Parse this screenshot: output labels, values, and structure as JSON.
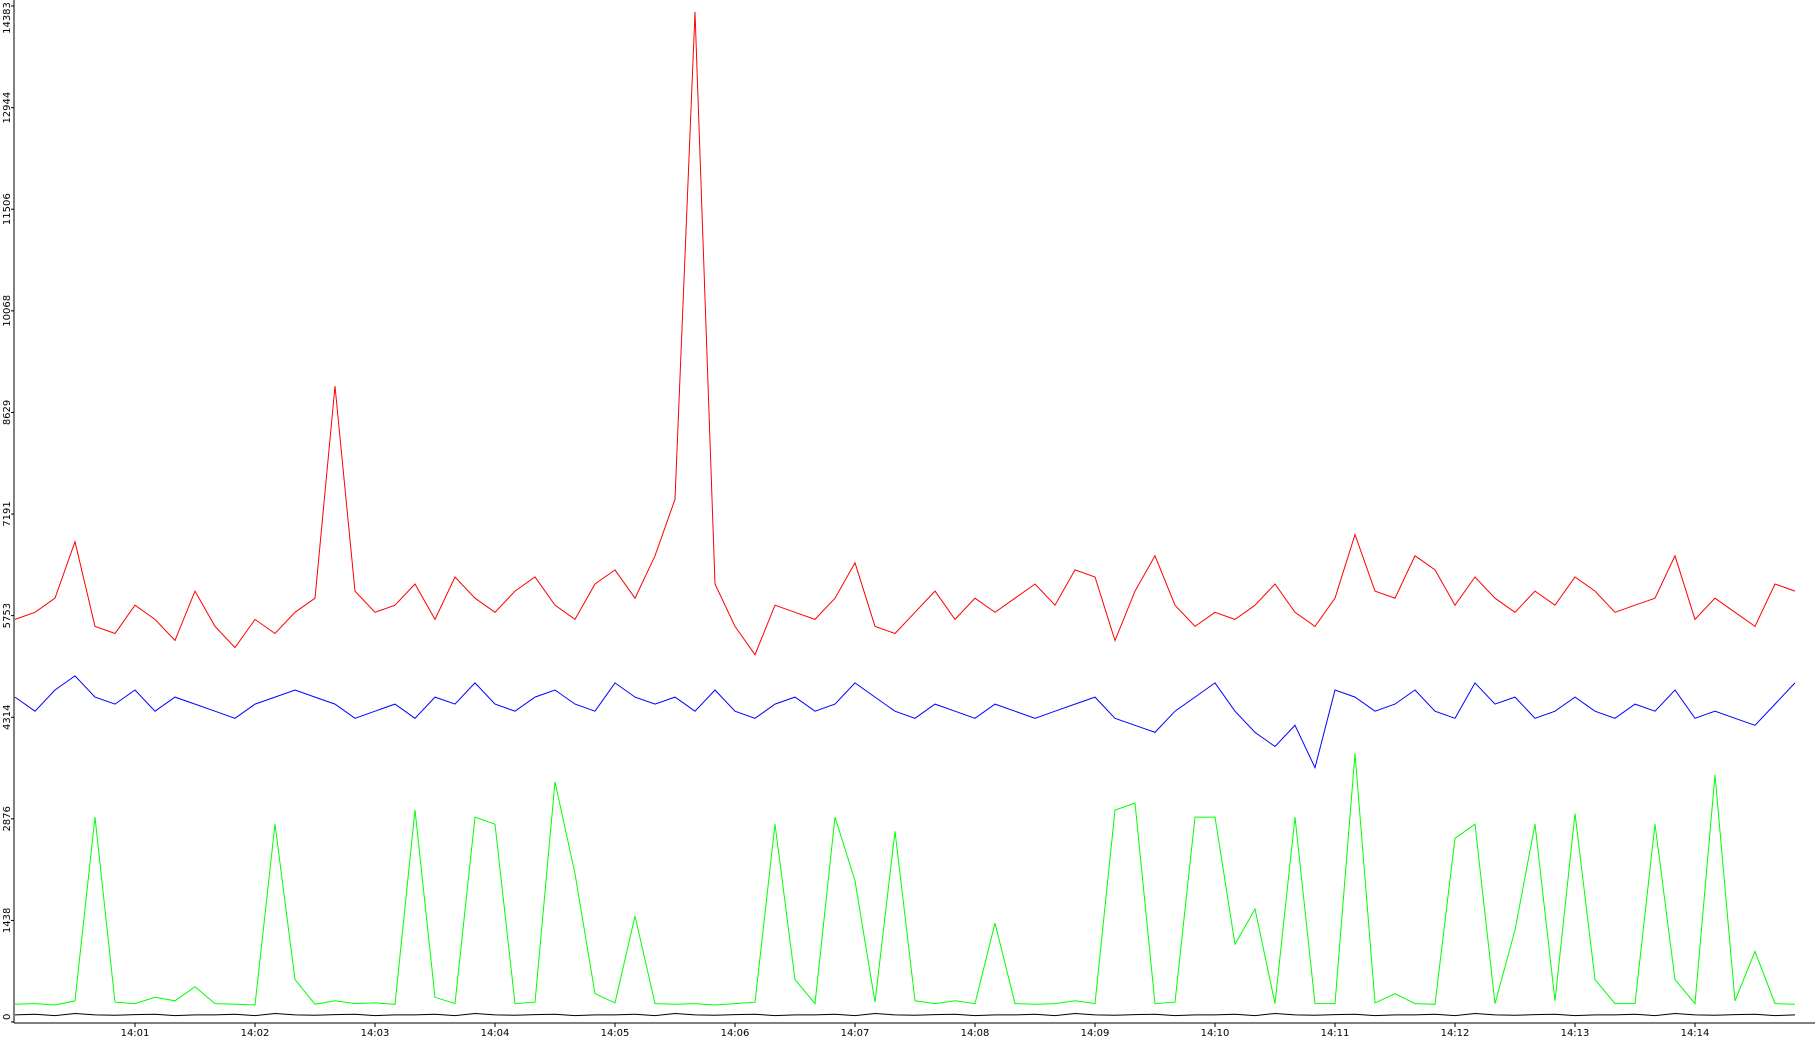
{
  "chart_data": {
    "type": "line",
    "x": [
      "14:00:00",
      "14:00:10",
      "14:00:20",
      "14:00:30",
      "14:00:40",
      "14:00:50",
      "14:01:00",
      "14:01:10",
      "14:01:20",
      "14:01:30",
      "14:01:40",
      "14:01:50",
      "14:02:00",
      "14:02:10",
      "14:02:20",
      "14:02:30",
      "14:02:40",
      "14:02:50",
      "14:03:00",
      "14:03:10",
      "14:03:20",
      "14:03:30",
      "14:03:40",
      "14:03:50",
      "14:04:00",
      "14:04:10",
      "14:04:20",
      "14:04:30",
      "14:04:40",
      "14:04:50",
      "14:05:00",
      "14:05:10",
      "14:05:20",
      "14:05:30",
      "14:05:40",
      "14:05:50",
      "14:06:00",
      "14:06:10",
      "14:06:20",
      "14:06:30",
      "14:06:40",
      "14:06:50",
      "14:07:00",
      "14:07:10",
      "14:07:20",
      "14:07:30",
      "14:07:40",
      "14:07:50",
      "14:08:00",
      "14:08:10",
      "14:08:20",
      "14:08:30",
      "14:08:40",
      "14:08:50",
      "14:09:00",
      "14:09:10",
      "14:09:20",
      "14:09:30",
      "14:09:40",
      "14:09:50",
      "14:10:00",
      "14:10:10",
      "14:10:20",
      "14:10:30",
      "14:10:40",
      "14:10:50",
      "14:11:00",
      "14:11:10",
      "14:11:20",
      "14:11:30",
      "14:11:40",
      "14:11:50",
      "14:12:00",
      "14:12:10",
      "14:12:20",
      "14:12:30",
      "14:12:40",
      "14:12:50",
      "14:13:00",
      "14:13:10",
      "14:13:20",
      "14:13:30",
      "14:13:40",
      "14:13:50",
      "14:14:00",
      "14:14:10",
      "14:14:20",
      "14:14:30",
      "14:14:40",
      "14:14:50"
    ],
    "series": [
      {
        "color": "#ff0000",
        "values": [
          5700,
          5800,
          6000,
          6800,
          5600,
          5500,
          5900,
          5700,
          5400,
          6100,
          5600,
          5300,
          5700,
          5500,
          5800,
          6000,
          9000,
          6100,
          5800,
          5900,
          6200,
          5700,
          6300,
          6000,
          5800,
          6100,
          6300,
          5900,
          5700,
          6200,
          6400,
          6000,
          6600,
          7400,
          14300,
          6200,
          5600,
          5200,
          5900,
          5800,
          5700,
          6000,
          6500,
          5600,
          5500,
          5800,
          6100,
          5700,
          6000,
          5800,
          6000,
          6200,
          5900,
          6400,
          6300,
          5400,
          6100,
          6600,
          5900,
          5600,
          5800,
          5700,
          5900,
          6200,
          5800,
          5600,
          6000,
          6900,
          6100,
          6000,
          6600,
          6400,
          5900,
          6300,
          6000,
          5800,
          6100,
          5900,
          6300,
          6100,
          5800,
          5900,
          6000,
          6600,
          5700,
          6000,
          5800,
          5600,
          6200,
          6100
        ]
      },
      {
        "color": "#0000ff",
        "values": [
          4600,
          4400,
          4700,
          4900,
          4600,
          4500,
          4700,
          4400,
          4600,
          4500,
          4400,
          4300,
          4500,
          4600,
          4700,
          4600,
          4500,
          4300,
          4400,
          4500,
          4300,
          4600,
          4500,
          4800,
          4500,
          4400,
          4600,
          4700,
          4500,
          4400,
          4800,
          4600,
          4500,
          4600,
          4400,
          4700,
          4400,
          4300,
          4500,
          4600,
          4400,
          4500,
          4800,
          4600,
          4400,
          4300,
          4500,
          4400,
          4300,
          4500,
          4400,
          4300,
          4400,
          4500,
          4600,
          4300,
          4200,
          4100,
          4400,
          4600,
          4800,
          4400,
          4100,
          3900,
          4200,
          3600,
          4700,
          4600,
          4400,
          4500,
          4700,
          4400,
          4300,
          4800,
          4500,
          4600,
          4300,
          4400,
          4600,
          4400,
          4300,
          4500,
          4400,
          4700,
          4300,
          4400,
          4300,
          4200,
          4500,
          4800
        ]
      },
      {
        "color": "#00ff00",
        "values": [
          250,
          260,
          240,
          300,
          2900,
          280,
          260,
          350,
          300,
          500,
          260,
          250,
          240,
          2800,
          600,
          250,
          300,
          260,
          270,
          250,
          3000,
          350,
          260,
          2900,
          2800,
          260,
          280,
          3400,
          2100,
          400,
          270,
          1500,
          260,
          250,
          260,
          240,
          260,
          280,
          2800,
          600,
          260,
          2900,
          2000,
          280,
          2700,
          300,
          260,
          300,
          260,
          1400,
          260,
          250,
          260,
          300,
          260,
          3000,
          3100,
          260,
          280,
          2900,
          2900,
          1100,
          1600,
          260,
          2900,
          260,
          260,
          3800,
          270,
          400,
          260,
          250,
          2600,
          2800,
          260,
          1300,
          2800,
          300,
          2950,
          600,
          260,
          260,
          2800,
          600,
          260,
          3500,
          300,
          1000,
          260,
          250
        ]
      },
      {
        "color": "#000000",
        "values": [
          100,
          110,
          90,
          120,
          100,
          95,
          105,
          110,
          90,
          100,
          100,
          110,
          90,
          120,
          100,
          95,
          105,
          110,
          90,
          100,
          100,
          110,
          90,
          120,
          100,
          95,
          105,
          110,
          90,
          100,
          100,
          110,
          90,
          120,
          100,
          95,
          105,
          110,
          90,
          100,
          100,
          110,
          90,
          120,
          100,
          95,
          105,
          110,
          90,
          100,
          100,
          110,
          90,
          120,
          100,
          95,
          105,
          110,
          90,
          100,
          100,
          110,
          90,
          120,
          100,
          95,
          105,
          110,
          90,
          100,
          100,
          110,
          90,
          120,
          100,
          95,
          105,
          110,
          90,
          100,
          100,
          110,
          90,
          120,
          100,
          95,
          105,
          110,
          90,
          100
        ]
      }
    ],
    "xlim": [
      "14:00:00",
      "14:15:00"
    ],
    "xticks": [
      {
        "value": "14:01:00",
        "label": "14:01"
      },
      {
        "value": "14:02:00",
        "label": "14:02"
      },
      {
        "value": "14:03:00",
        "label": "14:03"
      },
      {
        "value": "14:04:00",
        "label": "14:04"
      },
      {
        "value": "14:05:00",
        "label": "14:05"
      },
      {
        "value": "14:06:00",
        "label": "14:06"
      },
      {
        "value": "14:07:00",
        "label": "14:07"
      },
      {
        "value": "14:08:00",
        "label": "14:08"
      },
      {
        "value": "14:09:00",
        "label": "14:09"
      },
      {
        "value": "14:10:00",
        "label": "14:10"
      },
      {
        "value": "14:11:00",
        "label": "14:11"
      },
      {
        "value": "14:12:00",
        "label": "14:12"
      },
      {
        "value": "14:13:00",
        "label": "14:13"
      },
      {
        "value": "14:14:00",
        "label": "14:14"
      }
    ],
    "ylim": [
      0,
      14383
    ],
    "yticks": [
      0,
      1438,
      2876,
      4314,
      5753,
      7191,
      8629,
      10068,
      11506,
      12944,
      14383
    ]
  }
}
